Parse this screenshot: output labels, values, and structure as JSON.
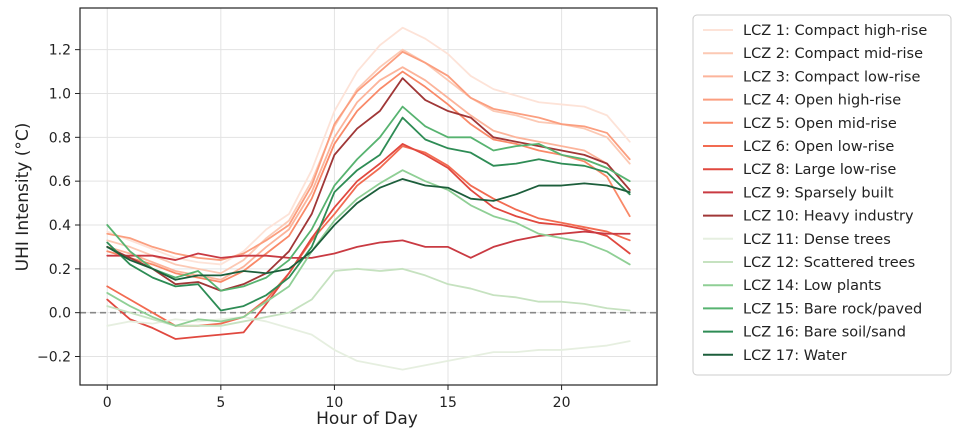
{
  "chart_data": {
    "type": "line",
    "title": "",
    "xlabel": "Hour of Day",
    "ylabel": "UHI Intensity (°C)",
    "xlim": [
      -1.2,
      24.2
    ],
    "ylim": [
      -0.33,
      1.39
    ],
    "xticks": [
      0,
      5,
      10,
      15,
      20
    ],
    "yticks": [
      -0.2,
      0.0,
      0.2,
      0.4,
      0.6,
      0.8,
      1.0,
      1.2
    ],
    "ytick_labels": [
      "−0.2",
      "0.0",
      "0.2",
      "0.4",
      "0.6",
      "0.8",
      "1.0",
      "1.2"
    ],
    "grid": true,
    "reference_line": {
      "y": 0.0,
      "style": "dashed",
      "color": "#888888"
    },
    "legend_position": "outside right",
    "x": [
      0,
      1,
      2,
      3,
      4,
      5,
      6,
      7,
      8,
      9,
      10,
      11,
      12,
      13,
      14,
      15,
      16,
      17,
      18,
      19,
      20,
      21,
      22,
      23
    ],
    "series": [
      {
        "name": "LCZ 1: Compact high-rise",
        "color": "#fde3d8",
        "values": [
          0.37,
          0.33,
          0.29,
          0.25,
          0.23,
          0.22,
          0.28,
          0.38,
          0.45,
          0.65,
          0.92,
          1.1,
          1.22,
          1.3,
          1.25,
          1.18,
          1.08,
          1.02,
          0.99,
          0.96,
          0.95,
          0.94,
          0.9,
          0.78
        ]
      },
      {
        "name": "LCZ 2: Compact mid-rise",
        "color": "#fcc9b4",
        "values": [
          0.33,
          0.3,
          0.26,
          0.22,
          0.2,
          0.18,
          0.24,
          0.34,
          0.42,
          0.6,
          0.85,
          1.02,
          1.12,
          1.2,
          1.14,
          1.06,
          0.98,
          0.92,
          0.9,
          0.87,
          0.86,
          0.84,
          0.8,
          0.68
        ]
      },
      {
        "name": "LCZ 3: Compact low-rise",
        "color": "#fcb49b",
        "values": [
          0.3,
          0.27,
          0.23,
          0.19,
          0.17,
          0.15,
          0.21,
          0.3,
          0.38,
          0.55,
          0.8,
          0.96,
          1.06,
          1.12,
          1.06,
          0.98,
          0.9,
          0.83,
          0.8,
          0.78,
          0.76,
          0.74,
          0.68,
          0.56
        ]
      },
      {
        "name": "LCZ 4: Open high-rise",
        "color": "#fb9e7f",
        "values": [
          0.36,
          0.34,
          0.3,
          0.27,
          0.25,
          0.24,
          0.27,
          0.33,
          0.4,
          0.58,
          0.86,
          1.01,
          1.1,
          1.19,
          1.14,
          1.08,
          0.98,
          0.93,
          0.91,
          0.89,
          0.86,
          0.85,
          0.82,
          0.7
        ]
      },
      {
        "name": "LCZ 5: Open mid-rise",
        "color": "#f98968",
        "values": [
          0.28,
          0.25,
          0.22,
          0.18,
          0.16,
          0.14,
          0.19,
          0.27,
          0.35,
          0.52,
          0.77,
          0.92,
          1.02,
          1.1,
          1.03,
          0.95,
          0.86,
          0.79,
          0.77,
          0.74,
          0.72,
          0.69,
          0.62,
          0.44
        ]
      },
      {
        "name": "LCZ 6: Open low-rise",
        "color": "#f26b51",
        "values": [
          0.12,
          0.06,
          0.0,
          -0.06,
          -0.06,
          -0.05,
          -0.02,
          0.06,
          0.18,
          0.33,
          0.45,
          0.58,
          0.66,
          0.76,
          0.73,
          0.67,
          0.58,
          0.52,
          0.47,
          0.43,
          0.41,
          0.39,
          0.37,
          0.33
        ]
      },
      {
        "name": "LCZ 8: Large low-rise",
        "color": "#e0483f",
        "values": [
          0.06,
          -0.03,
          -0.07,
          -0.12,
          -0.11,
          -0.1,
          -0.09,
          0.04,
          0.18,
          0.34,
          0.48,
          0.6,
          0.68,
          0.77,
          0.72,
          0.66,
          0.56,
          0.48,
          0.44,
          0.41,
          0.4,
          0.38,
          0.35,
          0.27
        ]
      },
      {
        "name": "LCZ 9: Sparsely built",
        "color": "#c93a42",
        "values": [
          0.26,
          0.26,
          0.26,
          0.24,
          0.27,
          0.25,
          0.26,
          0.26,
          0.25,
          0.25,
          0.27,
          0.3,
          0.32,
          0.33,
          0.3,
          0.3,
          0.25,
          0.3,
          0.33,
          0.35,
          0.36,
          0.37,
          0.36,
          0.36
        ]
      },
      {
        "name": "LCZ 10: Heavy industry",
        "color": "#a03737",
        "values": [
          0.3,
          0.25,
          0.2,
          0.13,
          0.14,
          0.1,
          0.13,
          0.18,
          0.28,
          0.45,
          0.72,
          0.84,
          0.92,
          1.07,
          0.97,
          0.92,
          0.89,
          0.8,
          0.78,
          0.76,
          0.74,
          0.72,
          0.68,
          0.56
        ]
      },
      {
        "name": "LCZ 11: Dense trees",
        "color": "#e6efe0",
        "values": [
          -0.06,
          -0.04,
          -0.05,
          -0.03,
          -0.04,
          -0.03,
          -0.02,
          -0.04,
          -0.07,
          -0.1,
          -0.17,
          -0.22,
          -0.24,
          -0.26,
          -0.24,
          -0.22,
          -0.2,
          -0.18,
          -0.18,
          -0.17,
          -0.17,
          -0.16,
          -0.15,
          -0.13
        ]
      },
      {
        "name": "LCZ 12: Scattered trees",
        "color": "#c6e2c0",
        "values": [
          0.03,
          0.0,
          -0.03,
          -0.06,
          -0.06,
          -0.06,
          -0.04,
          -0.02,
          0.0,
          0.06,
          0.19,
          0.2,
          0.19,
          0.2,
          0.17,
          0.13,
          0.11,
          0.08,
          0.07,
          0.05,
          0.05,
          0.04,
          0.02,
          0.01
        ]
      },
      {
        "name": "LCZ 14: Low plants",
        "color": "#8fcf95",
        "values": [
          0.09,
          0.03,
          -0.02,
          -0.06,
          -0.03,
          -0.04,
          -0.02,
          0.05,
          0.12,
          0.28,
          0.42,
          0.52,
          0.59,
          0.65,
          0.6,
          0.56,
          0.49,
          0.44,
          0.41,
          0.36,
          0.34,
          0.32,
          0.28,
          0.22
        ]
      },
      {
        "name": "LCZ 15: Bare rock/paved",
        "color": "#57b370",
        "values": [
          0.4,
          0.28,
          0.2,
          0.16,
          0.19,
          0.1,
          0.12,
          0.16,
          0.24,
          0.38,
          0.58,
          0.7,
          0.8,
          0.94,
          0.85,
          0.8,
          0.8,
          0.74,
          0.76,
          0.77,
          0.72,
          0.7,
          0.66,
          0.6
        ]
      },
      {
        "name": "LCZ 16: Bare soil/sand",
        "color": "#2e8c55",
        "values": [
          0.32,
          0.22,
          0.16,
          0.12,
          0.13,
          0.01,
          0.03,
          0.08,
          0.16,
          0.3,
          0.55,
          0.65,
          0.72,
          0.89,
          0.79,
          0.75,
          0.73,
          0.67,
          0.68,
          0.7,
          0.68,
          0.67,
          0.64,
          0.54
        ]
      },
      {
        "name": "LCZ 17: Water",
        "color": "#1c5e3b",
        "values": [
          0.3,
          0.24,
          0.2,
          0.15,
          0.17,
          0.17,
          0.19,
          0.18,
          0.2,
          0.28,
          0.4,
          0.5,
          0.57,
          0.61,
          0.58,
          0.57,
          0.52,
          0.51,
          0.54,
          0.58,
          0.58,
          0.59,
          0.58,
          0.55
        ]
      }
    ]
  }
}
